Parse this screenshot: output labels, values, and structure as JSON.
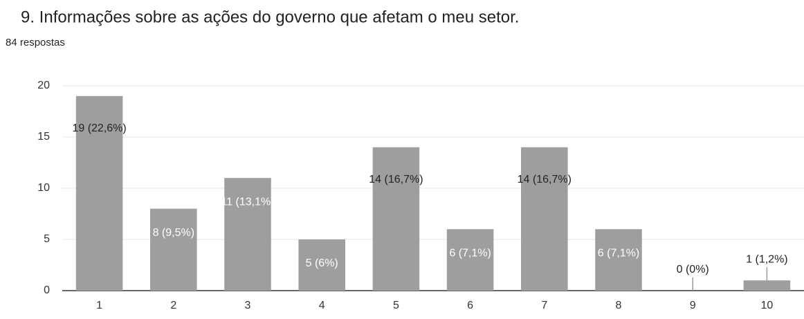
{
  "chart_data": {
    "type": "bar",
    "title": "9. Informações sobre as ações do governo que afetam o meu setor.",
    "subtitle": "84 respostas",
    "categories": [
      "1",
      "2",
      "3",
      "4",
      "5",
      "6",
      "7",
      "8",
      "9",
      "10"
    ],
    "values": [
      19,
      8,
      11,
      5,
      14,
      6,
      14,
      6,
      0,
      1
    ],
    "value_labels": [
      "19 (22,6%)",
      "8 (9,5%)",
      "11 (13,1%)",
      "5 (6%)",
      "14 (16,7%)",
      "6 (7,1%)",
      "14 (16,7%)",
      "6 (7,1%)",
      "0 (0%)",
      "1 (1,2%)"
    ],
    "color": "#9e9e9e",
    "ylim": [
      0,
      20
    ],
    "yticks": [
      0,
      5,
      10,
      15,
      20
    ],
    "grid": true
  }
}
